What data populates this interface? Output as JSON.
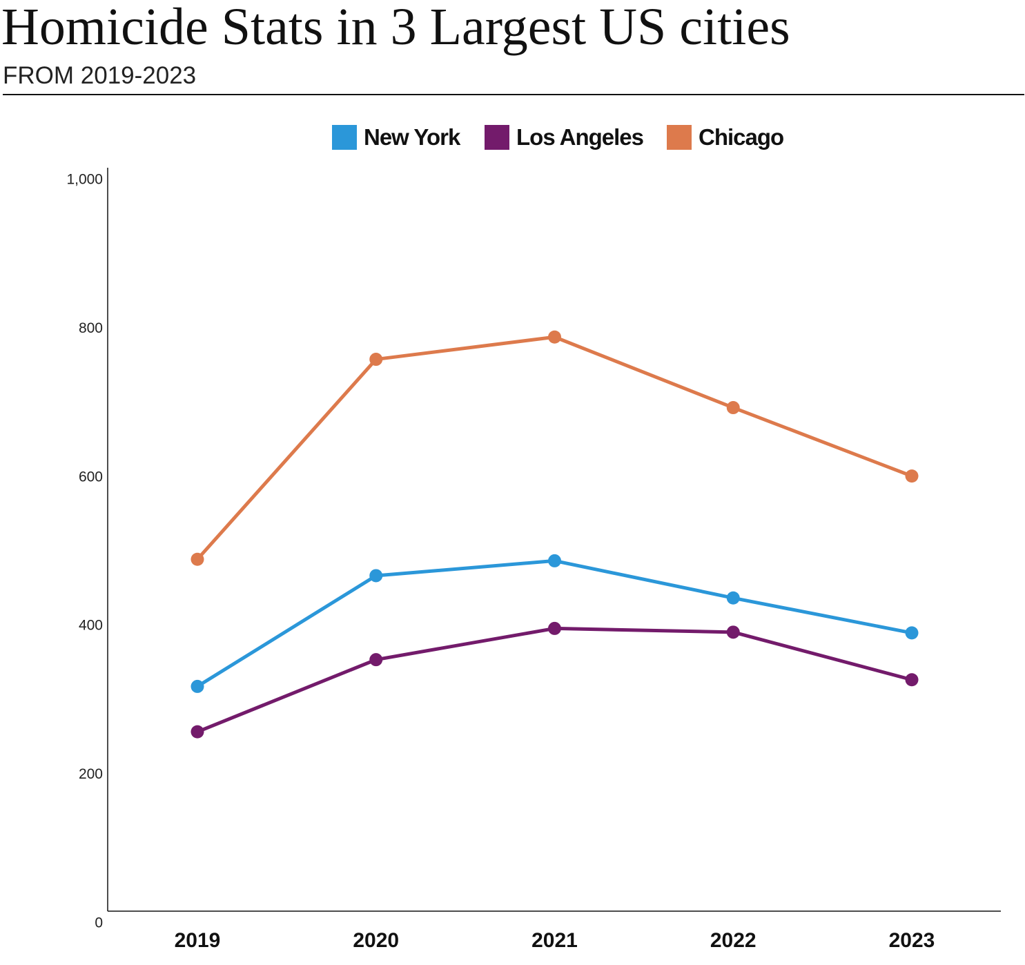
{
  "header": {
    "title": "Homicide Stats in 3 Largest US cities",
    "subtitle": "FROM 2019-2023"
  },
  "colors": {
    "new_york": "#2b97d9",
    "los_angeles": "#731b6b",
    "chicago": "#dd7a4c"
  },
  "chart_data": {
    "type": "line",
    "title": "Homicide Stats in 3 Largest US cities",
    "subtitle": "FROM 2019-2023",
    "categories": [
      "2019",
      "2020",
      "2021",
      "2022",
      "2023"
    ],
    "series": [
      {
        "name": "Chicago",
        "color": "#dd7a4c",
        "values": [
          490,
          759,
          789,
          694,
          602
        ]
      },
      {
        "name": "New York",
        "color": "#2b97d9",
        "values": [
          319,
          468,
          488,
          438,
          391
        ]
      },
      {
        "name": "Los Angeles",
        "color": "#731b6b",
        "values": [
          258,
          355,
          397,
          392,
          328
        ]
      }
    ],
    "legend_order": [
      "New York",
      "Los Angeles",
      "Chicago"
    ],
    "y_ticks": [
      "0",
      "200",
      "400",
      "600",
      "800",
      "1,000"
    ],
    "ylim": [
      0,
      1000
    ],
    "xlabel": "",
    "ylabel": "",
    "grid": false,
    "legend_position": "top-center"
  }
}
